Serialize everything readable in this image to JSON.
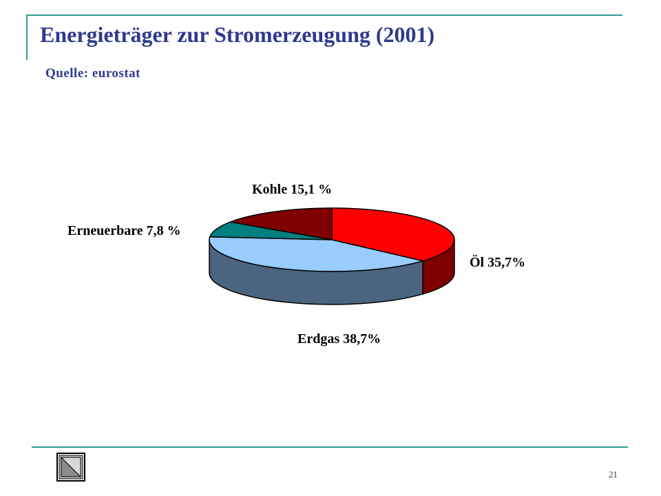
{
  "slide": {
    "title": "Energieträger zur Stromerzeugung (2001)",
    "subtitle": "Quelle: eurostat",
    "page_number": "21",
    "accent_color": "#2e9a96",
    "title_color": "#2f3a8c"
  },
  "nav": {
    "back_icon": "triangle-back-icon"
  },
  "chart_data": {
    "type": "pie",
    "style": "3d",
    "title": "Energieträger zur Stromerzeugung (2001)",
    "subtitle": "Quelle: eurostat",
    "slices": [
      {
        "name": "Öl",
        "value": 35.7,
        "label": "Öl 35,7%",
        "color": "#ff0000",
        "side_color": "#7f0000"
      },
      {
        "name": "Erdgas",
        "value": 38.7,
        "label": "Erdgas 38,7%",
        "color": "#99ccff",
        "side_color": "#4b6480"
      },
      {
        "name": "Erneuerbare",
        "value": 7.8,
        "label": "Erneuerbare 7,8 %",
        "color": "#008080",
        "side_color": "#004040"
      },
      {
        "name": "Kohle",
        "value": 15.1,
        "label": "Kohle 15,1 %",
        "color": "#800000",
        "side_color": "#400000"
      }
    ]
  }
}
